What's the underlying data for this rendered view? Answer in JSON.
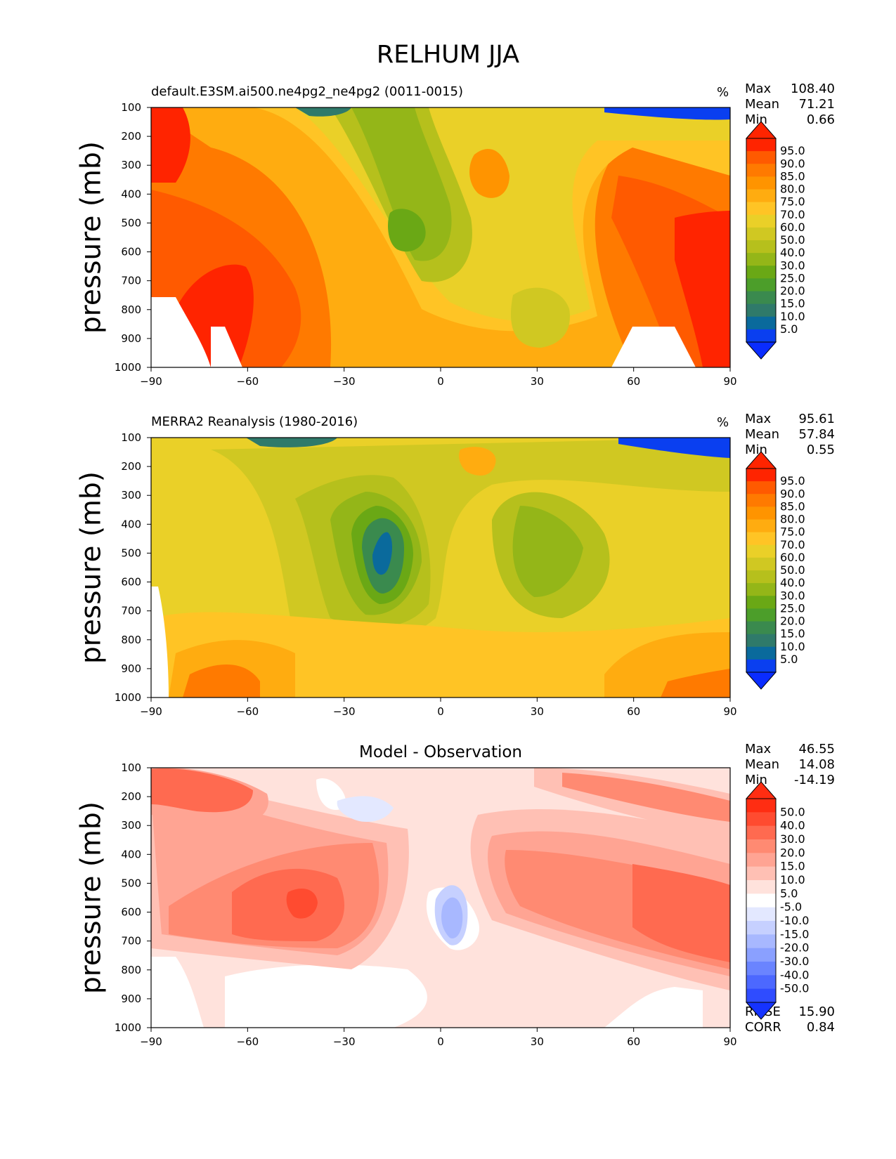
{
  "figure": {
    "title": "RELHUM JJA"
  },
  "chart_data": [
    {
      "type": "heatmap",
      "title": "default.E3SM.ai500.ne4pg2_ne4pg2 (0011-0015)",
      "units": "%",
      "xlabel": "",
      "ylabel": "pressure (mb)",
      "xlim": [
        -90,
        90
      ],
      "ylim": [
        1000,
        100
      ],
      "xticks": [
        "−90",
        "−60",
        "−30",
        "0",
        "30",
        "60",
        "90"
      ],
      "yticks": [
        "100",
        "200",
        "300",
        "400",
        "500",
        "600",
        "700",
        "800",
        "900",
        "1000"
      ],
      "stats": [
        [
          "Max",
          "108.40"
        ],
        [
          "Mean",
          "71.21"
        ],
        [
          "Min",
          "0.66"
        ]
      ],
      "colorbar": {
        "labels": [
          "95.0",
          "90.0",
          "85.0",
          "80.0",
          "75.0",
          "70.0",
          "60.0",
          "50.0",
          "40.0",
          "30.0",
          "25.0",
          "20.0",
          "15.0",
          "10.0",
          "5.0"
        ],
        "colors": [
          "#ff2400",
          "#ff5a00",
          "#ff7a00",
          "#ff9400",
          "#ffac10",
          "#ffc425",
          "#ead028",
          "#d0c822",
          "#b6c01c",
          "#94b618",
          "#6aa815",
          "#4c9e2a",
          "#3a8a4e",
          "#2f7a6a",
          "#0a6a9c",
          "#0a3ff0"
        ],
        "ext_top": "#ff2400",
        "ext_bottom": "#0a2cff"
      }
    },
    {
      "type": "heatmap",
      "title": "MERRA2 Reanalysis (1980-2016)",
      "units": "%",
      "xlabel": "",
      "ylabel": "pressure (mb)",
      "xlim": [
        -90,
        90
      ],
      "ylim": [
        1000,
        100
      ],
      "xticks": [
        "−90",
        "−60",
        "−30",
        "0",
        "30",
        "60",
        "90"
      ],
      "yticks": [
        "100",
        "200",
        "300",
        "400",
        "500",
        "600",
        "700",
        "800",
        "900",
        "1000"
      ],
      "stats": [
        [
          "Max",
          "95.61"
        ],
        [
          "Mean",
          "57.84"
        ],
        [
          "Min",
          "0.55"
        ]
      ],
      "colorbar": {
        "labels": [
          "95.0",
          "90.0",
          "85.0",
          "80.0",
          "75.0",
          "70.0",
          "60.0",
          "50.0",
          "40.0",
          "30.0",
          "25.0",
          "20.0",
          "15.0",
          "10.0",
          "5.0"
        ],
        "colors": [
          "#ff2400",
          "#ff5a00",
          "#ff7a00",
          "#ff9400",
          "#ffac10",
          "#ffc425",
          "#ead028",
          "#d0c822",
          "#b6c01c",
          "#94b618",
          "#6aa815",
          "#4c9e2a",
          "#3a8a4e",
          "#2f7a6a",
          "#0a6a9c",
          "#0a3ff0"
        ],
        "ext_top": "#ff2400",
        "ext_bottom": "#0a2cff"
      }
    },
    {
      "type": "heatmap",
      "title": "Model - Observation",
      "units": "",
      "xlabel": "",
      "ylabel": "pressure (mb)",
      "xlim": [
        -90,
        90
      ],
      "ylim": [
        1000,
        100
      ],
      "xticks": [
        "−90",
        "−60",
        "−30",
        "0",
        "30",
        "60",
        "90"
      ],
      "yticks": [
        "100",
        "200",
        "300",
        "400",
        "500",
        "600",
        "700",
        "800",
        "900",
        "1000"
      ],
      "stats": [
        [
          "Max",
          "46.55"
        ],
        [
          "Mean",
          "14.08"
        ],
        [
          "Min",
          "-14.19"
        ]
      ],
      "extra_stats": [
        [
          "RMSE",
          "15.90"
        ],
        [
          "CORR",
          "0.84"
        ]
      ],
      "colorbar": {
        "labels": [
          "50.0",
          "40.0",
          "30.0",
          "20.0",
          "15.0",
          "10.0",
          "5.0",
          "-5.0",
          "-10.0",
          "-15.0",
          "-20.0",
          "-30.0",
          "-40.0",
          "-50.0"
        ],
        "colors": [
          "#ff2d12",
          "#ff4b30",
          "#ff6a50",
          "#ff8a72",
          "#ffa493",
          "#ffc0b4",
          "#ffe2dc",
          "#ffffff",
          "#e3e8ff",
          "#c6d0ff",
          "#a8b8ff",
          "#8aa0ff",
          "#6a84ff",
          "#4c68ff",
          "#2f4cff"
        ],
        "ext_top": "#ff2d12",
        "ext_bottom": "#1533ff"
      }
    }
  ]
}
